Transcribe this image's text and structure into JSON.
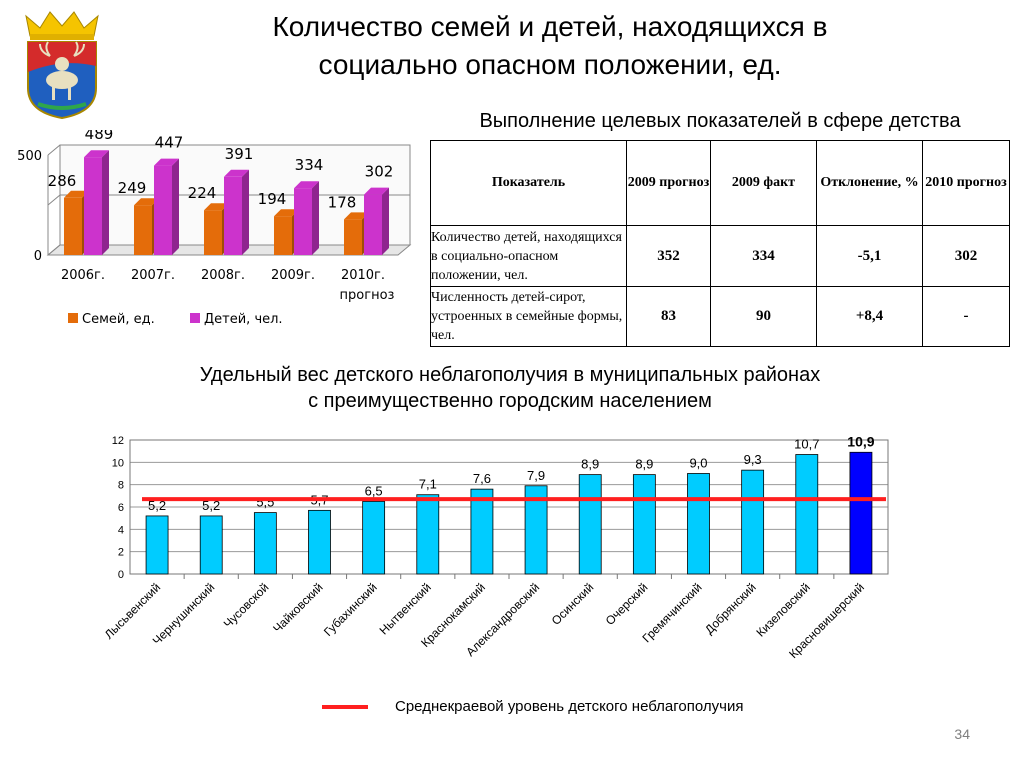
{
  "slide": {
    "title_line1": "Количество семей и детей, находящихся в",
    "title_line2": "социально опасном положении, ед.",
    "table_title": "Выполнение  целевых показателей в сфере детства",
    "chart2_title_line1": "Удельный вес детского неблагополучия в муниципальных районах",
    "chart2_title_line2": "с преимущественно городским населением",
    "legend_line_label": "Среднекраевой уровень детского неблагополучия",
    "page_number": "34"
  },
  "table": {
    "headers": [
      "Показатель",
      "2009 прогноз",
      "2009 факт",
      "Отклонение, %",
      "2010 прогноз"
    ],
    "rows": [
      {
        "label": "Количество детей, находящихся в социально-опасном положении, чел.",
        "values": [
          "352",
          "334",
          "-5,1",
          "302"
        ]
      },
      {
        "label": "Численность детей-сирот, устроенных в семейные формы, чел.",
        "values": [
          "83",
          "90",
          "+8,4",
          "-"
        ]
      }
    ]
  },
  "chart_data": [
    {
      "type": "bar",
      "categories": [
        "2006г.",
        "2007г.",
        "2008г.",
        "2009г.",
        "2010г. прогноз"
      ],
      "series": [
        {
          "name": "Семей, ед.",
          "values": [
            286,
            249,
            224,
            194,
            178
          ],
          "color": "#e46c0a"
        },
        {
          "name": "Детей, чел.",
          "values": [
            489,
            447,
            391,
            334,
            302
          ],
          "color": "#cc33cc"
        }
      ],
      "ylim": [
        0,
        500
      ],
      "yticks": [
        0,
        500
      ],
      "grid": true,
      "legend": "bottom"
    },
    {
      "type": "bar",
      "categories": [
        "Лысьвенский",
        "Чернушинский",
        "Чусовской",
        "Чайковский",
        "Губахинский",
        "Нытвенский",
        "Краснокамский",
        "Александровский",
        "Осинский",
        "Очерский",
        "Гремячинский",
        "Добрянский",
        "Кизеловский",
        "Красновишерский"
      ],
      "values": [
        5.2,
        5.2,
        5.5,
        5.7,
        6.5,
        7.1,
        7.6,
        7.9,
        8.9,
        8.9,
        9.0,
        9.3,
        10.7,
        10.9
      ],
      "labels": [
        "5,2",
        "5,2",
        "5,5",
        "5,7",
        "6,5",
        "7,1",
        "7,6",
        "7,9",
        "8,9",
        "8,9",
        "9,0",
        "9,3",
        "10,7",
        "10,9"
      ],
      "highlight_index": 13,
      "bar_color": "#00ccff",
      "highlight_color": "#0000ff",
      "average_line": {
        "value": 6.7,
        "color": "#ff1f1f",
        "name": "Среднекраевой уровень детского неблагополучия"
      },
      "ylim": [
        0,
        12
      ],
      "yticks": [
        "0",
        "2",
        "4",
        "6",
        "8",
        "10",
        "12"
      ],
      "grid": true
    }
  ]
}
